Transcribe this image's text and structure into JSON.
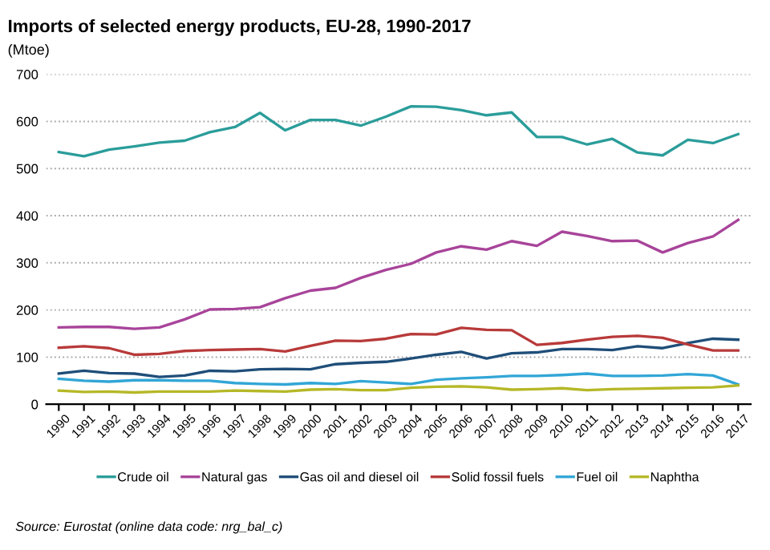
{
  "chart_data": {
    "type": "line",
    "title": "Imports of selected energy products, EU-28, 1990-2017",
    "subtitle": "(Mtoe)",
    "categories": [
      "1990",
      "1991",
      "1992",
      "1993",
      "1994",
      "1995",
      "1996",
      "1997",
      "1998",
      "1999",
      "2000",
      "2001",
      "2002",
      "2003",
      "2004",
      "2005",
      "2006",
      "2007",
      "2008",
      "2009",
      "2010",
      "2011",
      "2012",
      "2013",
      "2014",
      "2015",
      "2016",
      "2017"
    ],
    "series": [
      {
        "name": "Crude oil",
        "color": "#2a9d9a",
        "values": [
          535,
          526,
          540,
          547,
          555,
          559,
          577,
          588,
          618,
          581,
          603,
          603,
          591,
          610,
          632,
          631,
          624,
          613,
          619,
          567,
          567,
          551,
          563,
          534,
          528,
          561,
          554,
          573
        ]
      },
      {
        "name": "Natural gas",
        "color": "#a8449a",
        "values": [
          163,
          164,
          164,
          160,
          163,
          180,
          201,
          202,
          206,
          225,
          241,
          247,
          268,
          285,
          298,
          322,
          335,
          328,
          346,
          336,
          366,
          357,
          346,
          347,
          322,
          342,
          356,
          391
        ]
      },
      {
        "name": "Gas oil and diesel oil",
        "color": "#1f4e79",
        "values": [
          65,
          71,
          66,
          65,
          58,
          61,
          71,
          70,
          74,
          75,
          74,
          85,
          88,
          90,
          97,
          105,
          111,
          97,
          108,
          110,
          117,
          117,
          115,
          123,
          119,
          130,
          139,
          137
        ]
      },
      {
        "name": "Solid fossil fuels",
        "color": "#b83a3a",
        "values": [
          120,
          123,
          119,
          105,
          107,
          113,
          115,
          116,
          117,
          112,
          124,
          135,
          134,
          139,
          149,
          148,
          162,
          158,
          157,
          126,
          130,
          137,
          143,
          145,
          141,
          127,
          114,
          114
        ]
      },
      {
        "name": "Fuel oil",
        "color": "#32a6d6",
        "values": [
          54,
          50,
          48,
          51,
          51,
          50,
          50,
          45,
          43,
          42,
          45,
          43,
          49,
          46,
          43,
          52,
          55,
          57,
          60,
          60,
          62,
          65,
          60,
          60,
          61,
          64,
          61,
          42
        ]
      },
      {
        "name": "Naphtha",
        "color": "#b5b826",
        "values": [
          29,
          26,
          27,
          25,
          27,
          27,
          27,
          29,
          28,
          27,
          31,
          32,
          30,
          30,
          35,
          37,
          38,
          36,
          31,
          32,
          34,
          30,
          32,
          33,
          34,
          35,
          36,
          40
        ]
      }
    ],
    "ylim": [
      0,
      700
    ],
    "yticks": [
      0,
      100,
      200,
      300,
      400,
      500,
      600,
      700
    ],
    "grid": "y",
    "legend": "bottom",
    "marker": "none",
    "line_style": "solid",
    "annotations": [
      "Source: Eurostat (online data code: nrg_bal_c)"
    ]
  }
}
